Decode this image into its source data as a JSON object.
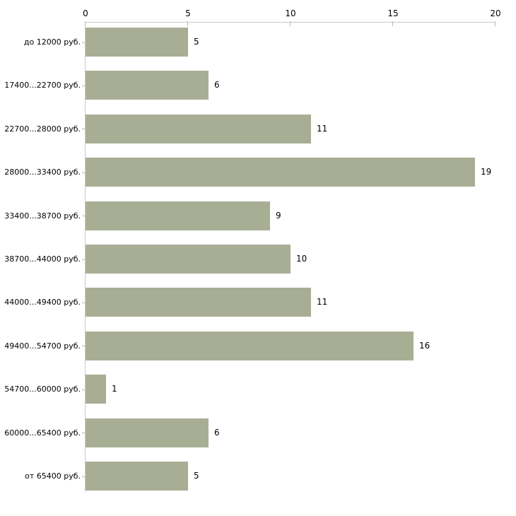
{
  "chart_data": {
    "type": "bar",
    "orientation": "horizontal",
    "title": "",
    "xlabel": "",
    "ylabel": "",
    "categories": [
      "до 12000 руб.",
      "17400...22700 руб.",
      "22700...28000 руб.",
      "28000...33400 руб.",
      "33400...38700 руб.",
      "38700...44000 руб.",
      "44000...49400 руб.",
      "49400...54700 руб.",
      "54700...60000 руб.",
      "60000...65400 руб.",
      "от 65400 руб."
    ],
    "values": [
      5,
      6,
      11,
      19,
      9,
      10,
      11,
      16,
      1,
      6,
      5
    ],
    "x_ticks": [
      0,
      5,
      10,
      15,
      20
    ],
    "xlim": [
      0,
      20
    ],
    "grid": false,
    "legend": "none",
    "value_labels_shown": true,
    "colors": {
      "bar": "#a8ae94",
      "axis_line": "#c9c9c9",
      "tick_mark": "#b9bea1",
      "text": "#000000",
      "background": "#ffffff"
    }
  }
}
